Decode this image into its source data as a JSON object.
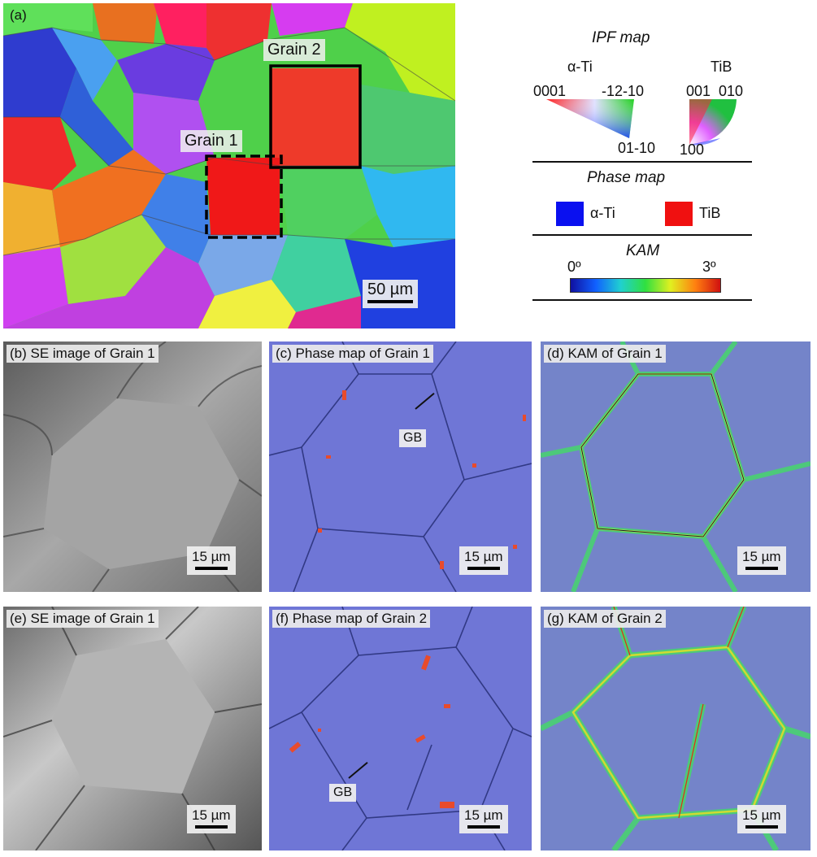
{
  "panels": {
    "a": {
      "label": "(a)",
      "grain1": "Grain 1",
      "grain2": "Grain 2",
      "scale": "50 µm"
    },
    "b": {
      "label": "(b) SE image of Grain 1",
      "scale": "15 µm"
    },
    "c": {
      "label": "(c) Phase map of Grain 1",
      "scale": "15 µm",
      "gb": "GB"
    },
    "d": {
      "label": "(d) KAM of Grain 1",
      "scale": "15 µm"
    },
    "e": {
      "label": "(e) SE image of Grain 1",
      "scale": "15 µm"
    },
    "f": {
      "label": "(f) Phase map of Grain 2",
      "scale": "15 µm",
      "gb": "GB"
    },
    "g": {
      "label": "(g) KAM of Grain 2",
      "scale": "15 µm"
    }
  },
  "legend": {
    "ipf": {
      "title": "IPF map",
      "alpha_ti": {
        "name": "α-Ti",
        "corner_0001": "0001",
        "corner_1210": "-12-10",
        "corner_0110": "01-10"
      },
      "tib": {
        "name": "TiB",
        "corner_001": "001",
        "corner_010": "010",
        "corner_100": "100"
      }
    },
    "phase": {
      "title": "Phase map",
      "items": [
        {
          "name": "α-Ti",
          "color": "#0a10f0"
        },
        {
          "name": "TiB",
          "color": "#f01010"
        }
      ]
    },
    "kam": {
      "title": "KAM",
      "min": "0º",
      "max": "3º"
    }
  },
  "colors": {
    "phase_bg": "#6f76d6",
    "kam_bg": "#7484c9",
    "se_bg": "#9a9a9a",
    "tib": "#e84b2c"
  }
}
